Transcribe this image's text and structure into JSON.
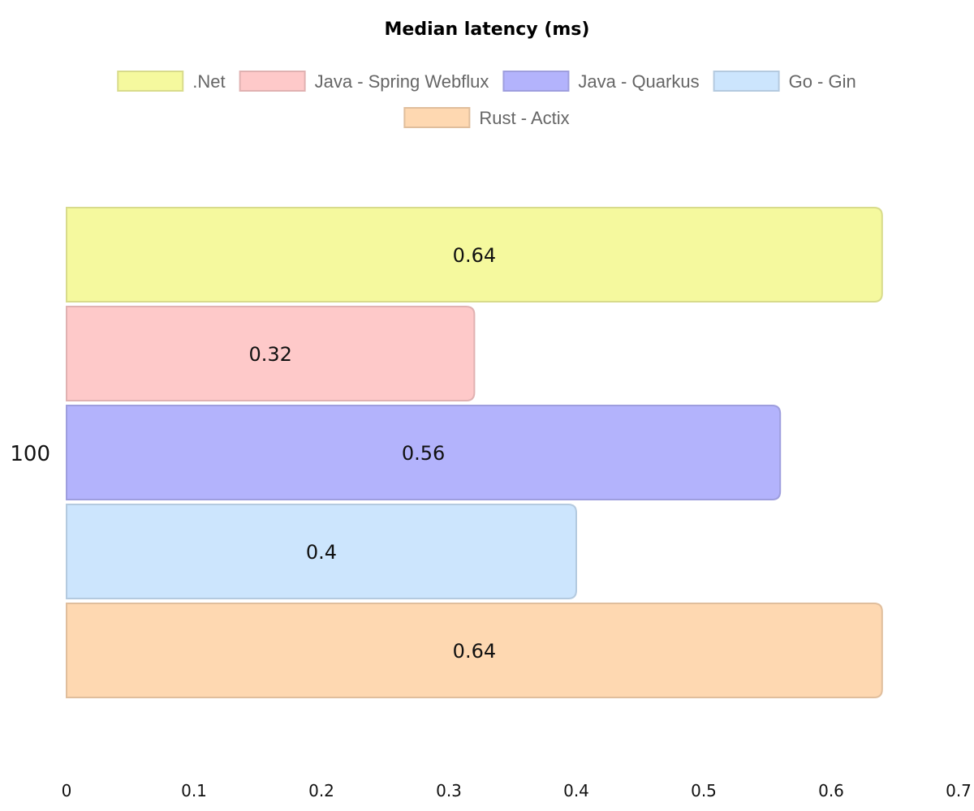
{
  "chart_data": {
    "type": "bar",
    "orientation": "horizontal",
    "title": "Median latency (ms)",
    "categories": [
      "100"
    ],
    "series": [
      {
        "name": ".Net",
        "values": [
          0.64
        ],
        "color": "#f5f99e"
      },
      {
        "name": "Java - Spring Webflux",
        "values": [
          0.32
        ],
        "color": "#fec9c9"
      },
      {
        "name": "Java - Quarkus",
        "values": [
          0.56
        ],
        "color": "#b3b3fc"
      },
      {
        "name": "Go - Gin",
        "values": [
          0.4
        ],
        "color": "#cce5fd"
      },
      {
        "name": "Rust - Actix",
        "values": [
          0.64
        ],
        "color": "#fed8b1"
      }
    ],
    "data_labels": [
      "0.64",
      "0.32",
      "0.56",
      "0.4",
      "0.64"
    ],
    "xlim": [
      0,
      0.7
    ],
    "xticks": [
      "0",
      "0.1",
      "0.2",
      "0.3",
      "0.4",
      "0.5",
      "0.6",
      "0.7"
    ],
    "grid": false,
    "legend_position": "top"
  }
}
